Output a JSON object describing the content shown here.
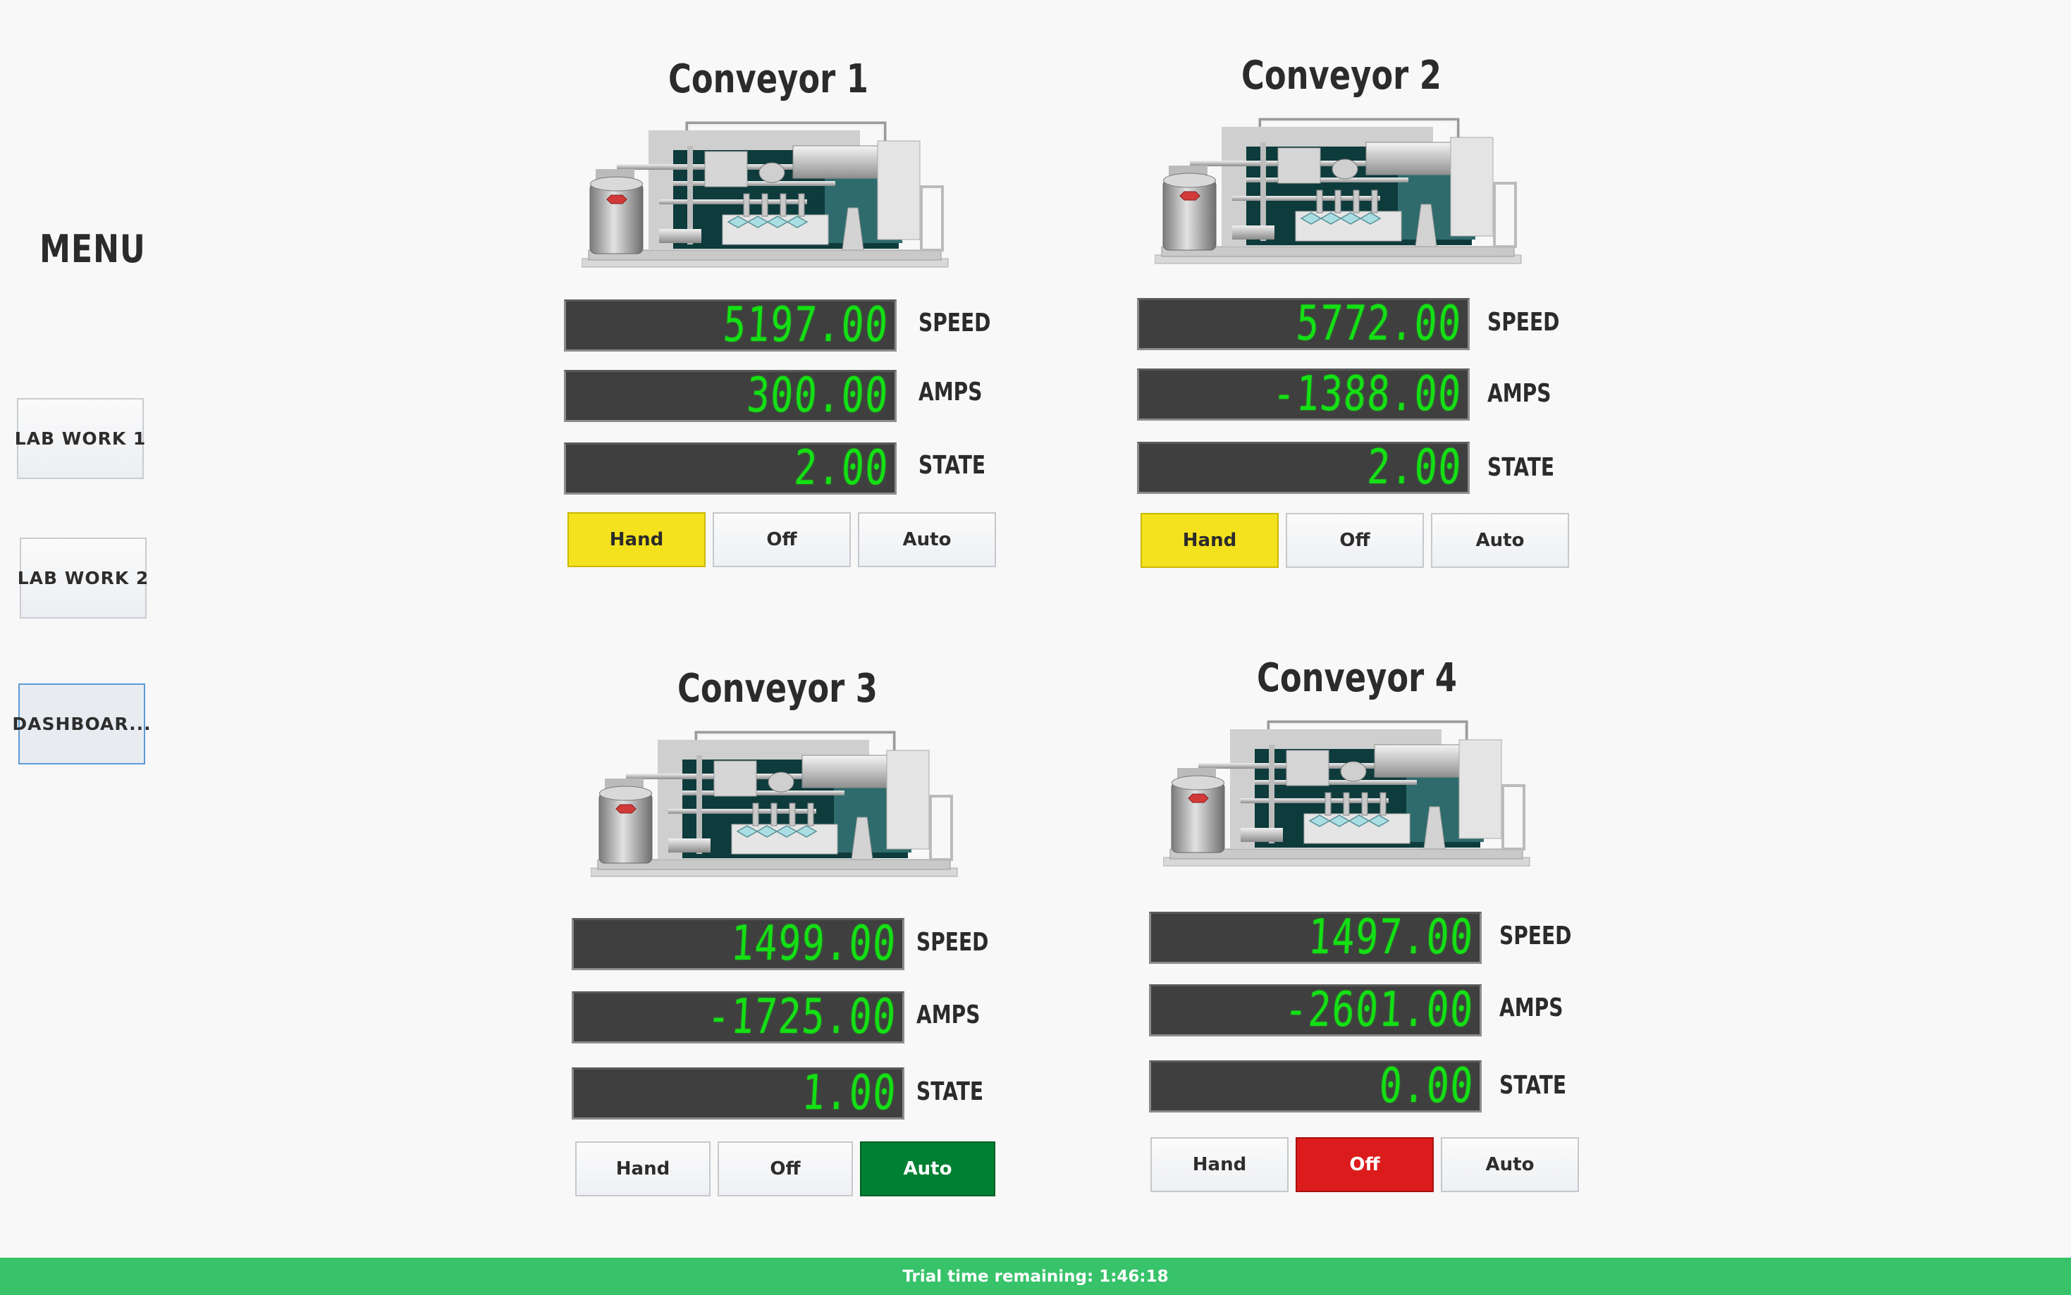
{
  "menu": {
    "title": "MENU",
    "items": [
      {
        "label": "LAB WORK 1",
        "active": false
      },
      {
        "label": "LAB WORK 2",
        "active": false
      },
      {
        "label": "DASHBOAR...",
        "active": true
      }
    ]
  },
  "conveyors": [
    {
      "title": "Conveyor 1",
      "speed": "5197.00",
      "amps": "300.00",
      "state": "2.00",
      "mode": "Hand"
    },
    {
      "title": "Conveyor 2",
      "speed": "5772.00",
      "amps": "-1388.00",
      "state": "2.00",
      "mode": "Hand"
    },
    {
      "title": "Conveyor 3",
      "speed": "1499.00",
      "amps": "-1725.00",
      "state": "1.00",
      "mode": "Auto"
    },
    {
      "title": "Conveyor 4",
      "speed": "1497.00",
      "amps": "-2601.00",
      "state": "0.00",
      "mode": "Off"
    }
  ],
  "readout_labels": {
    "speed": "SPEED",
    "amps": "AMPS",
    "state": "STATE"
  },
  "mode_buttons": {
    "hand": "Hand",
    "off": "Off",
    "auto": "Auto"
  },
  "colors": {
    "hand_active": "#f3e21d",
    "off_active": "#dc1c1c",
    "auto_active": "#008033",
    "segment": "#14e014",
    "trial_bar": "#38c26a"
  },
  "trial": {
    "text": "Trial time remaining: 1:46:18"
  }
}
